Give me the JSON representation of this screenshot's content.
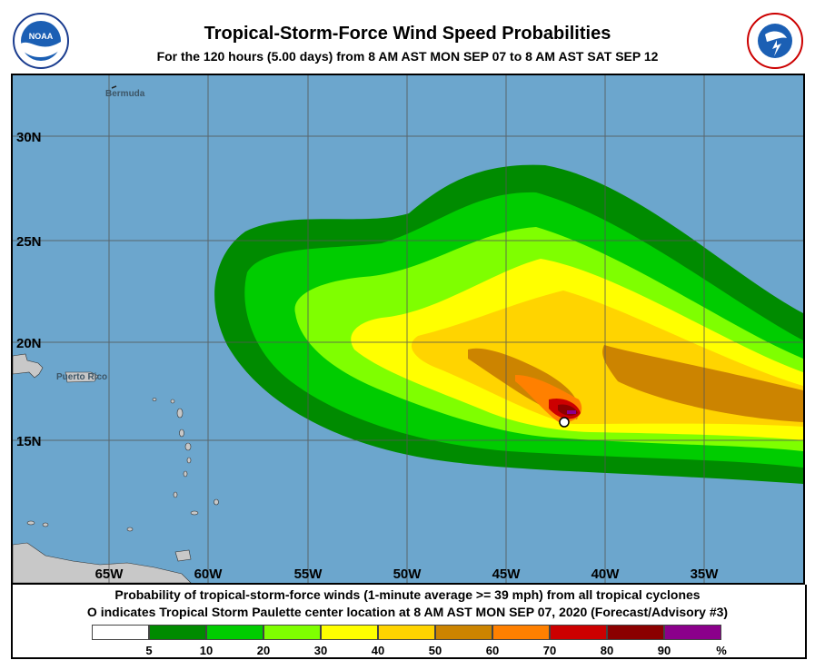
{
  "header": {
    "title": "Tropical-Storm-Force Wind Speed Probabilities",
    "subtitle": "For the 120 hours (5.00 days) from 8 AM AST MON SEP 07 to 8 AM AST SAT SEP 12",
    "left_logo": "NOAA",
    "right_logo": "NATIONAL WEATHER SERVICE"
  },
  "map": {
    "latitude_labels": [
      "30N",
      "25N",
      "20N",
      "15N"
    ],
    "longitude_labels": [
      "65W",
      "60W",
      "55W",
      "50W",
      "45W",
      "40W",
      "35W"
    ],
    "place_labels": [
      "Bermuda",
      "Puerto Rico"
    ],
    "ocean_color": "#6ca6cd",
    "land_color": "#c8c8c8",
    "storm_center_marker": "white-circle"
  },
  "caption": {
    "line1": "Probability of tropical-storm-force winds (1-minute average >= 39 mph) from all tropical cyclones",
    "line2": "O indicates Tropical Storm Paulette center location at 8 AM AST MON SEP 07, 2020 (Forecast/Advisory #3)"
  },
  "legend": {
    "colors": [
      "#ffffff",
      "#008b00",
      "#00cc00",
      "#7fff00",
      "#ffff00",
      "#ffd400",
      "#cc8400",
      "#ff8000",
      "#cc0000",
      "#8b0000",
      "#8b008b"
    ],
    "labels": [
      "5",
      "10",
      "20",
      "30",
      "40",
      "50",
      "60",
      "70",
      "80",
      "90",
      "%"
    ]
  }
}
